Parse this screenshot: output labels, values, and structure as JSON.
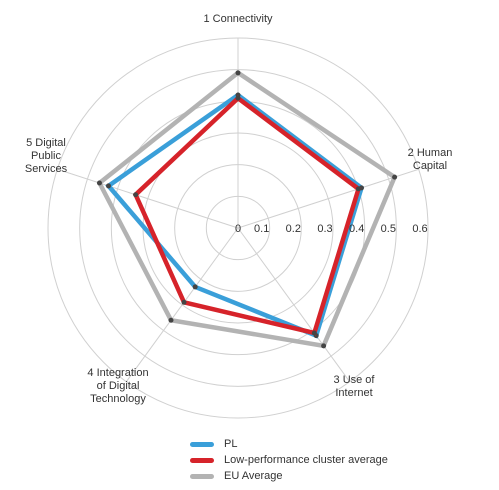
{
  "chart_data": {
    "type": "radar",
    "axes": [
      "1 Connectivity",
      "2 Human Capital",
      "3 Use of Internet",
      "4 Integration of Digital Technology",
      "5 Digital Public Services"
    ],
    "axis_label_lines": [
      [
        "1 Connectivity"
      ],
      [
        "2 Human",
        "Capital"
      ],
      [
        "3 Use of",
        "Internet"
      ],
      [
        "4 Integration",
        "of Digital",
        "Technology"
      ],
      [
        "5 Digital",
        "Public",
        "Services"
      ]
    ],
    "ticks": [
      "0",
      "0.1",
      "0.2",
      "0.3",
      "0.4",
      "0.5",
      "0.6"
    ],
    "tick_values": [
      0,
      0.1,
      0.2,
      0.3,
      0.4,
      0.5,
      0.6
    ],
    "rmax": 0.6,
    "grid": true,
    "legend_position": "bottom",
    "series": [
      {
        "name": "EU Average",
        "values": [
          0.49,
          0.52,
          0.46,
          0.36,
          0.46
        ],
        "color": "#b3b3b3"
      },
      {
        "name": "PL",
        "values": [
          0.42,
          0.41,
          0.42,
          0.23,
          0.43
        ],
        "color": "#3a9fd9"
      },
      {
        "name": "Low-performance cluster average",
        "values": [
          0.41,
          0.4,
          0.41,
          0.29,
          0.34
        ],
        "color": "#d6232a"
      }
    ]
  },
  "legend": {
    "items": [
      {
        "label": "PL",
        "color": "#3a9fd9"
      },
      {
        "label": "Low-performance cluster average",
        "color": "#d6232a"
      },
      {
        "label": "EU Average",
        "color": "#b3b3b3"
      }
    ]
  }
}
